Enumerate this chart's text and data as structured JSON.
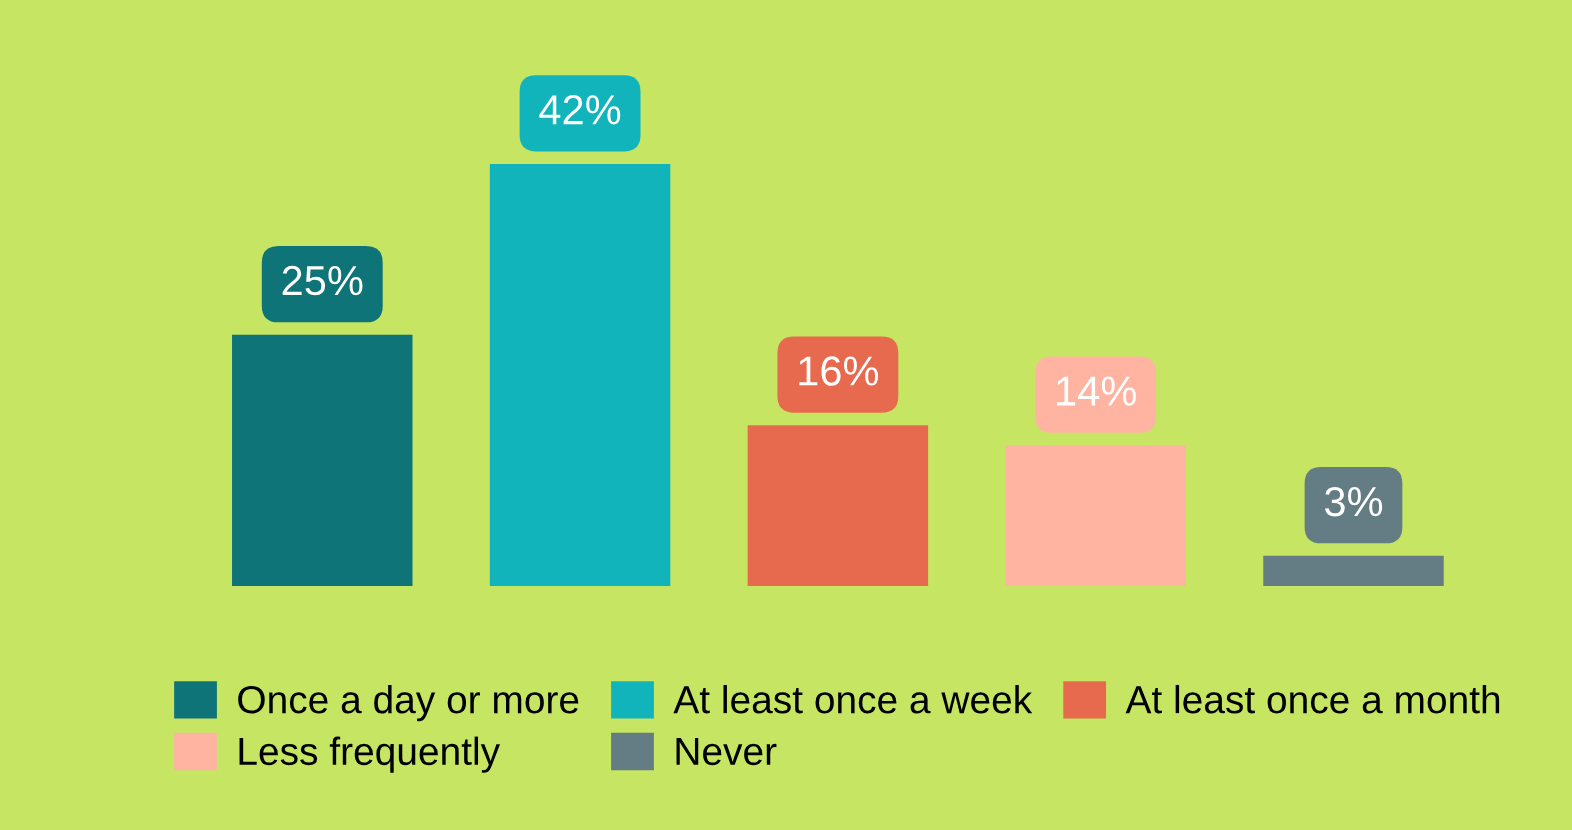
{
  "chart_data": {
    "type": "bar",
    "stacked": true,
    "categories": [
      null,
      null,
      null,
      null,
      null
    ],
    "series": [
      {
        "name": "Once a day or more",
        "color": "#0f7478",
        "values": [
          25,
          null,
          null,
          null,
          null
        ],
        "value_labels": [
          "25%",
          null,
          null,
          null,
          null
        ]
      },
      {
        "name": "At least once a week",
        "color": "#12b4bc",
        "values": [
          null,
          42,
          null,
          null,
          null
        ],
        "value_labels": [
          null,
          "42%",
          null,
          null,
          null
        ]
      },
      {
        "name": "At least once a month",
        "color": "#e86a4e",
        "values": [
          null,
          null,
          16,
          null,
          null
        ],
        "value_labels": [
          null,
          null,
          "16%",
          null,
          null
        ]
      },
      {
        "name": "Less frequently",
        "color": "#ffb4a2",
        "values": [
          null,
          null,
          null,
          14,
          null
        ],
        "value_labels": [
          null,
          null,
          null,
          "14%",
          null
        ]
      },
      {
        "name": "Never",
        "color": "#647c84",
        "values": [
          null,
          null,
          null,
          null,
          3
        ],
        "value_labels": [
          null,
          null,
          null,
          null,
          "3%"
        ]
      }
    ],
    "grid": false,
    "legend": "bottom",
    "tick_labels": false
  }
}
